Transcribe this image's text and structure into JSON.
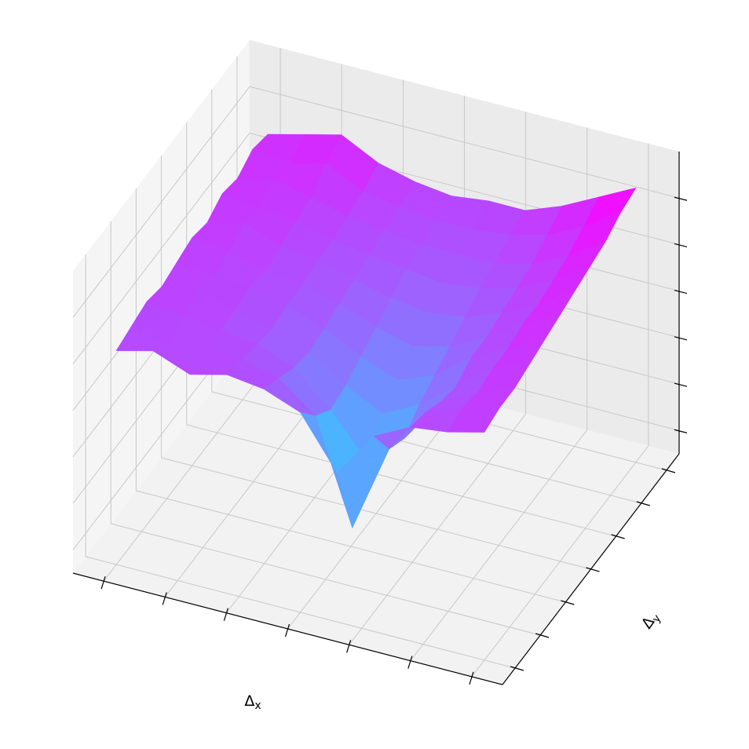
{
  "chart_data": {
    "type": "surface",
    "xlabel": {
      "base": "Δ",
      "sub": "x"
    },
    "ylabel": {
      "base": "Δ",
      "sub": "y"
    },
    "x": [
      -3,
      -2.4,
      -1.8,
      -1.2,
      -0.6,
      0,
      0.6,
      1.2,
      1.8,
      2.4,
      3
    ],
    "y": [
      -3,
      -2.4,
      -1.8,
      -1.2,
      -0.6,
      0,
      0.6,
      1.2,
      1.8,
      2.4,
      3
    ],
    "z": [
      [
        4.6,
        4.8,
        4.5,
        4.7,
        4.6,
        4.3,
        3.2,
        4.2,
        4.6,
        4.7,
        4.9
      ],
      [
        4.7,
        4.5,
        4.8,
        4.6,
        4.4,
        3.8,
        1.6,
        3.5,
        4.5,
        4.8,
        5.0
      ],
      [
        4.8,
        4.7,
        4.6,
        4.5,
        4.2,
        3.5,
        2.6,
        3.3,
        4.3,
        4.7,
        5.0
      ],
      [
        4.7,
        4.9,
        4.6,
        4.4,
        4.1,
        3.6,
        3.2,
        3.6,
        4.2,
        4.8,
        5.1
      ],
      [
        4.8,
        4.7,
        4.7,
        4.5,
        4.2,
        3.8,
        3.5,
        3.8,
        4.4,
        4.8,
        5.2
      ],
      [
        4.9,
        4.8,
        4.6,
        4.5,
        4.3,
        4.0,
        3.8,
        4.0,
        4.4,
        4.9,
        5.3
      ],
      [
        4.8,
        5.0,
        4.7,
        4.6,
        4.4,
        4.2,
        4.1,
        4.2,
        4.5,
        4.9,
        5.4
      ],
      [
        5.0,
        4.9,
        4.8,
        4.6,
        4.5,
        4.4,
        4.3,
        4.4,
        4.6,
        5.0,
        5.5
      ],
      [
        4.9,
        5.1,
        4.9,
        4.7,
        4.6,
        4.5,
        4.5,
        4.5,
        4.7,
        5.1,
        5.6
      ],
      [
        5.1,
        5.0,
        5.2,
        4.8,
        4.7,
        4.6,
        4.6,
        4.7,
        4.9,
        5.3,
        5.8
      ],
      [
        5.0,
        5.2,
        5.4,
        5.0,
        4.8,
        4.7,
        4.8,
        4.8,
        5.1,
        5.5,
        5.9
      ]
    ],
    "colormap": "cool",
    "xlim": [
      -3.5,
      3.5
    ],
    "ylim": [
      -3.5,
      3.5
    ],
    "zlim": [
      0,
      6.5
    ],
    "xticks": [
      -3,
      -2,
      -1,
      0,
      1,
      2,
      3
    ],
    "yticks": [
      -3,
      -2,
      -1,
      0,
      1,
      2,
      3
    ],
    "zticks": [
      0.5,
      1.5,
      2.5,
      3.5,
      4.5,
      5.5
    ],
    "grid": true
  }
}
